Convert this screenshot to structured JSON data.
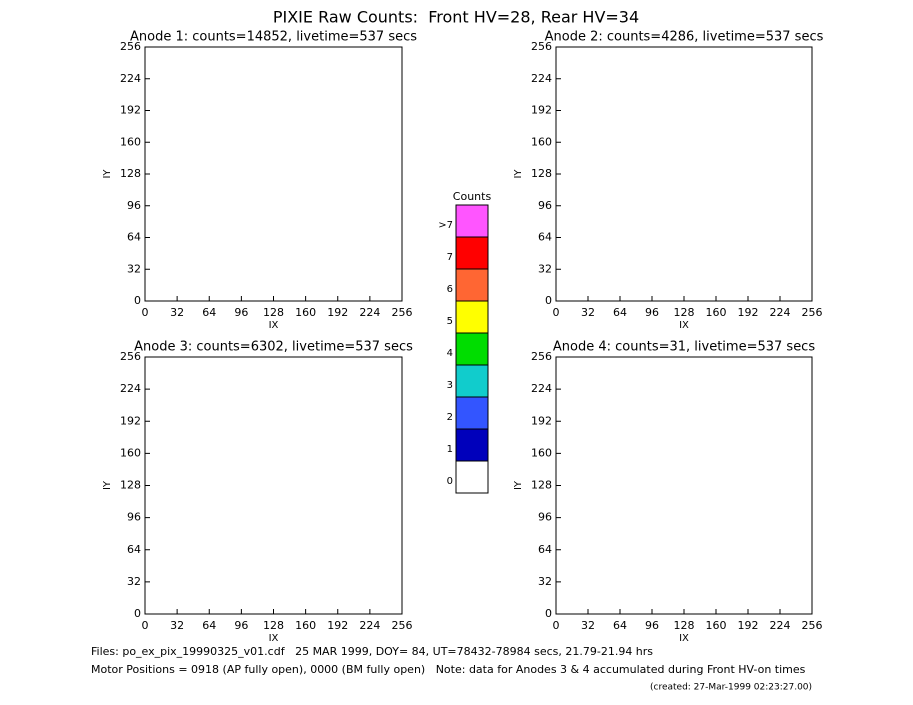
{
  "title": "PIXIE Raw Counts:  Front HV=28, Rear HV=34",
  "footer": [
    "Files: po_ex_pix_19990325_v01.cdf   25 MAR 1999, DOY= 84, UT=78432-78984 secs, 21.79-21.94 hrs",
    "Motor Positions = 0918 (AP fully open), 0000 (BM fully open)   Note: data for Anodes 3 & 4 accumulated during Front HV-on times",
    "(created: 27-Mar-1999 02:23:27.00)"
  ],
  "chart_data": [
    {
      "type": "scatter",
      "title": "Anode 1: counts=14852, livetime=537 secs",
      "x_label": "IX",
      "y_label": "IY",
      "xlim": [
        0,
        256
      ],
      "ylim": [
        0,
        256
      ],
      "xticks": [
        0,
        32,
        64,
        96,
        128,
        160,
        192,
        224,
        256
      ],
      "yticks": [
        0,
        32,
        64,
        96,
        128,
        160,
        192,
        224,
        256
      ]
    },
    {
      "type": "scatter",
      "title": "Anode 2: counts=4286, livetime=537 secs",
      "x_label": "IX",
      "y_label": "IY",
      "xlim": [
        0,
        256
      ],
      "ylim": [
        0,
        256
      ],
      "xticks": [
        0,
        32,
        64,
        96,
        128,
        160,
        192,
        224,
        256
      ],
      "yticks": [
        0,
        32,
        64,
        96,
        128,
        160,
        192,
        224,
        256
      ]
    },
    {
      "type": "scatter",
      "title": "Anode 3: counts=6302, livetime=537 secs",
      "x_label": "IX",
      "y_label": "IY",
      "xlim": [
        0,
        256
      ],
      "ylim": [
        0,
        256
      ],
      "xticks": [
        0,
        32,
        64,
        96,
        128,
        160,
        192,
        224,
        256
      ],
      "yticks": [
        0,
        32,
        64,
        96,
        128,
        160,
        192,
        224,
        256
      ]
    },
    {
      "type": "scatter",
      "title": "Anode 4: counts=31, livetime=537 secs",
      "x_label": "IX",
      "y_label": "IY",
      "xlim": [
        0,
        256
      ],
      "ylim": [
        0,
        256
      ],
      "xticks": [
        0,
        32,
        64,
        96,
        128,
        160,
        192,
        224,
        256
      ],
      "yticks": [
        0,
        32,
        64,
        96,
        128,
        160,
        192,
        224,
        256
      ]
    },
    {
      "type": "colorbar",
      "title": "Counts",
      "categories": [
        "0",
        "1",
        "2",
        "3",
        "4",
        "5",
        "6",
        "7",
        ">7"
      ],
      "colors": [
        "#ffffff",
        "#0000bb",
        "#3355ff",
        "#11cccc",
        "#00dd00",
        "#ffff00",
        "#ff6633",
        "#ff0000",
        "#ff55ff"
      ]
    }
  ]
}
